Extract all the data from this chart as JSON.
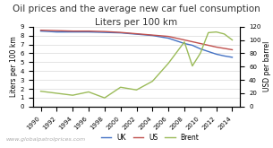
{
  "title_line1": "Oil prices and the average new car fuel consumption",
  "title_line2": "Liters per 100 km",
  "ylabel_left": "Liters per 100 km",
  "ylabel_right": "USD per barrel",
  "watermark": "www.globalpatrolprices.com",
  "legend_labels": [
    "UK",
    "US",
    "Brent"
  ],
  "years": [
    1990,
    1992,
    1994,
    1996,
    1998,
    2000,
    2002,
    2004,
    2006,
    2008,
    2009,
    2010,
    2011,
    2012,
    2013,
    2014
  ],
  "UK": [
    8.5,
    8.4,
    8.4,
    8.4,
    8.35,
    8.3,
    8.15,
    8.0,
    7.7,
    7.1,
    6.9,
    6.5,
    6.2,
    5.9,
    5.7,
    5.55
  ],
  "US": [
    8.6,
    8.55,
    8.5,
    8.5,
    8.45,
    8.35,
    8.2,
    8.05,
    7.9,
    7.5,
    7.3,
    7.1,
    6.9,
    6.7,
    6.55,
    6.4
  ],
  "Brent": [
    23,
    20,
    17,
    22,
    13,
    29,
    25,
    38,
    65,
    97,
    61,
    80,
    111,
    112,
    109,
    100
  ],
  "ylim_left": [
    0,
    9
  ],
  "ylim_right": [
    0,
    120
  ],
  "yticks_left": [
    0,
    1,
    2,
    3,
    4,
    5,
    6,
    7,
    8,
    9
  ],
  "yticks_right": [
    0,
    20,
    40,
    60,
    80,
    100,
    120
  ],
  "xticks": [
    1990,
    1992,
    1994,
    1996,
    1998,
    2000,
    2002,
    2004,
    2006,
    2008,
    2010,
    2012,
    2014
  ],
  "color_UK": "#4472c4",
  "color_US": "#c0504d",
  "color_Brent": "#9bbb59",
  "background_color": "#ffffff",
  "grid_color": "#d0d0d0",
  "title_fontsize": 7.5,
  "label_fontsize": 5.5,
  "tick_fontsize": 5.0,
  "legend_fontsize": 5.5,
  "watermark_fontsize": 4.5
}
